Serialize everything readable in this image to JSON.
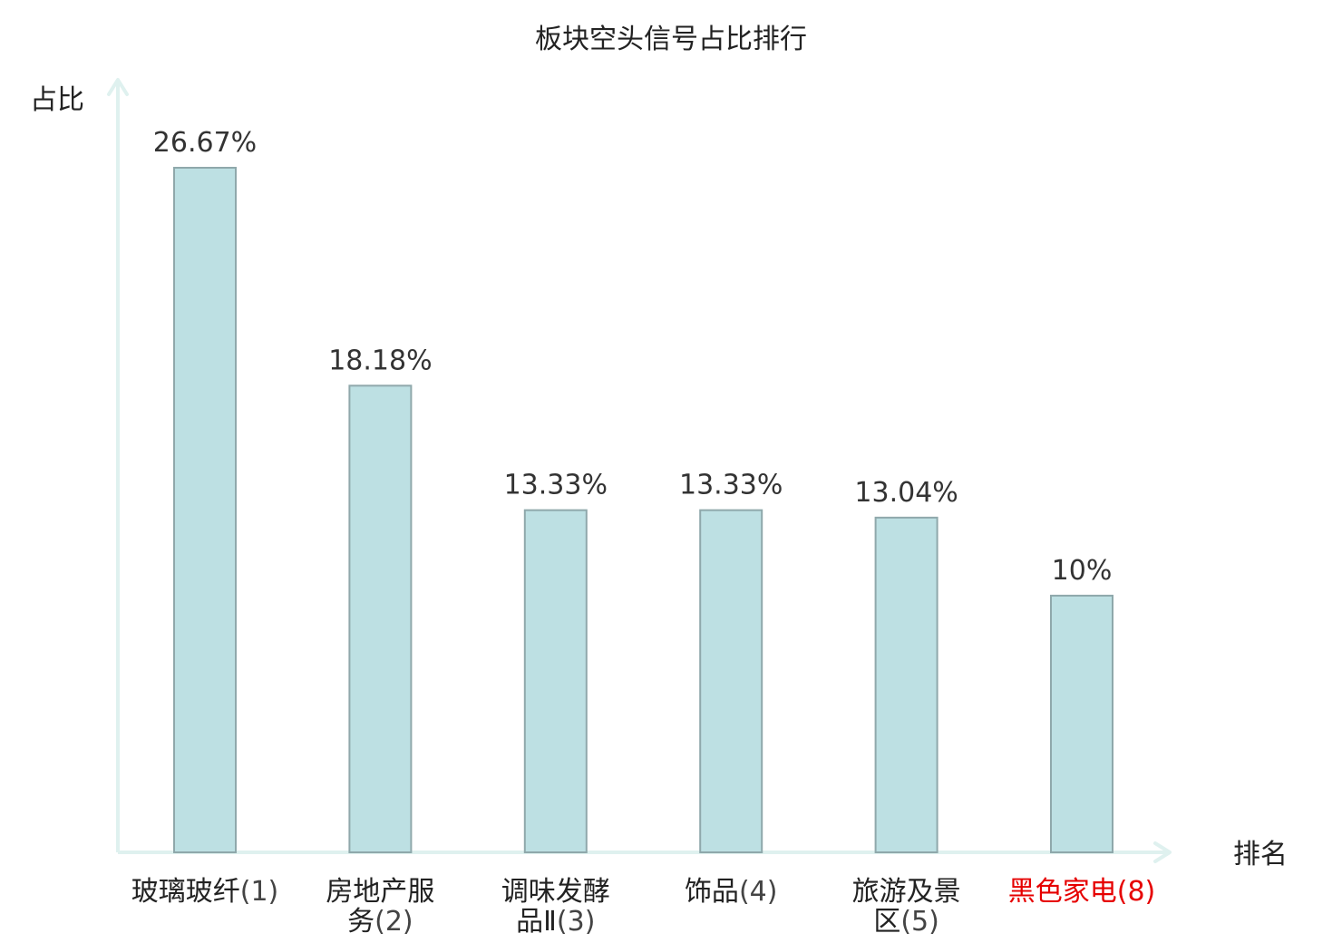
{
  "chart_data": {
    "type": "bar",
    "title": "板块空头信号占比排行",
    "xlabel": "排名",
    "ylabel": "占比",
    "ylim": [
      0,
      30
    ],
    "grid": false,
    "categories": [
      {
        "name": "玻璃玻纤",
        "rank": "(1)",
        "lines": [
          "玻璃玻纤(1)"
        ],
        "highlight": false
      },
      {
        "name": "房地产服务",
        "rank": "(2)",
        "lines": [
          "房地产服",
          "务(2)"
        ],
        "highlight": false
      },
      {
        "name": "调味发酵品Ⅱ",
        "rank": "(3)",
        "lines": [
          "调味发酵",
          "品Ⅱ(3)"
        ],
        "highlight": false
      },
      {
        "name": "饰品",
        "rank": "(4)",
        "lines": [
          "饰品(4)"
        ],
        "highlight": false
      },
      {
        "name": "旅游及景区",
        "rank": "(5)",
        "lines": [
          "旅游及景",
          "区(5)"
        ],
        "highlight": false
      },
      {
        "name": "黑色家电",
        "rank": "(8)",
        "lines": [
          "黑色家电(8)"
        ],
        "highlight": true
      }
    ],
    "values": [
      26.67,
      18.18,
      13.33,
      13.33,
      13.04,
      10
    ],
    "value_labels": [
      "26.67%",
      "18.18%",
      "13.33%",
      "13.33%",
      "13.04%",
      "10%"
    ]
  },
  "colors": {
    "bar_fill": "#bde0e3",
    "bar_stroke": "#8fa8ab",
    "axis": "#dff1ef",
    "text": "#222222",
    "value_text": "#333333",
    "highlight_text": "#e60000"
  }
}
